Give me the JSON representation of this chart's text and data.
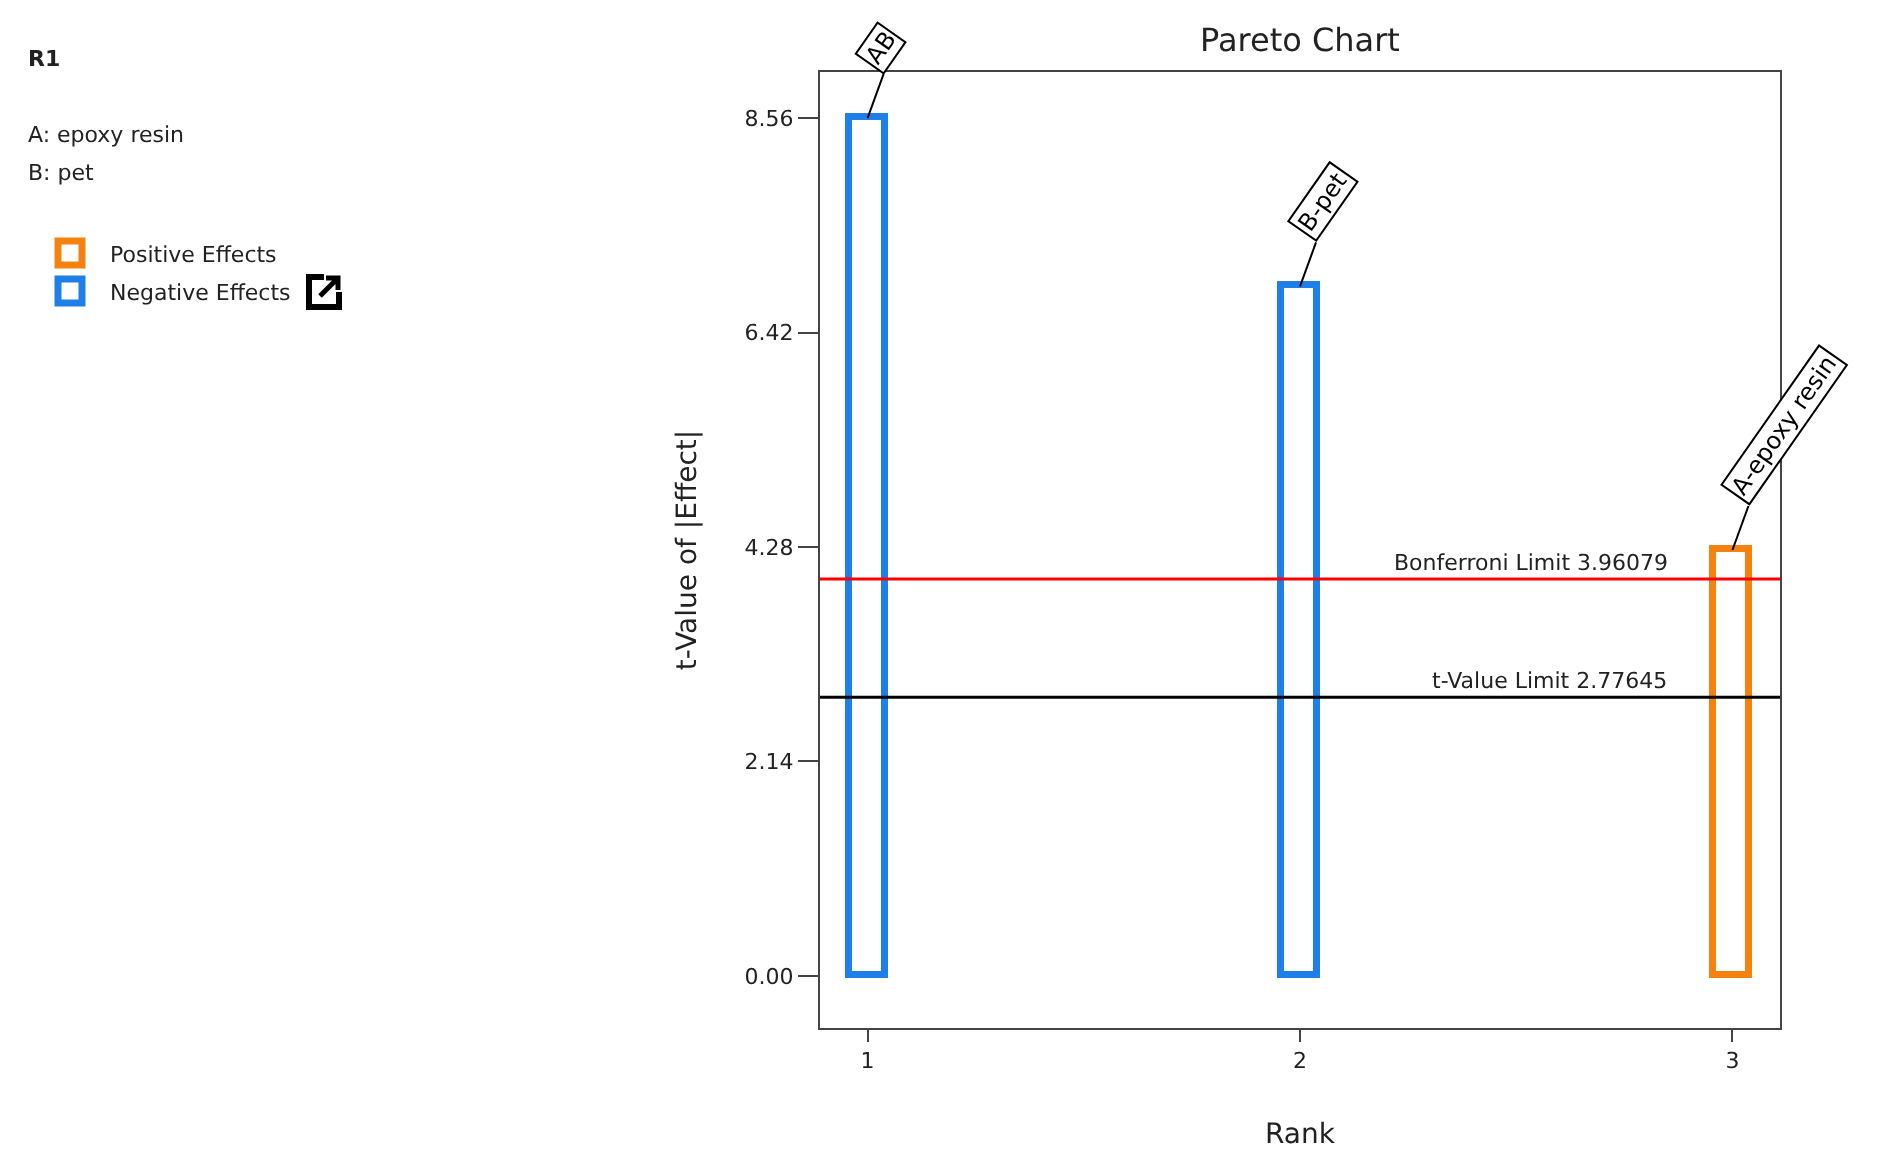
{
  "chart_data": {
    "type": "bar",
    "title": "Pareto Chart",
    "xlabel": "Rank",
    "ylabel": "t-Value of |Effect|",
    "xlim": [
      0.89,
      3.11
    ],
    "xticks": [
      1,
      2,
      3
    ],
    "ylim": [
      -0.52,
      9.02
    ],
    "yticks": [
      {
        "value": 0,
        "label": "0.00"
      },
      {
        "value": 2.14,
        "label": "2.14"
      },
      {
        "value": 4.28,
        "label": "4.28"
      },
      {
        "value": 6.42,
        "label": "6.42"
      },
      {
        "value": 8.56,
        "label": "8.56"
      }
    ],
    "series": [
      {
        "name": "Positive Effects",
        "color": "#f5820f",
        "x": [
          3
        ],
        "values": [
          4.25
        ]
      },
      {
        "name": "Negative Effects",
        "color": "#1f7fe8",
        "x": [
          1,
          2
        ],
        "values": [
          8.56,
          6.88
        ]
      }
    ],
    "ref_lines": [
      {
        "axis": "y",
        "value": 3.96,
        "label": "Bonferroni Limit 3.96079",
        "color": "#ff0000"
      },
      {
        "axis": "y",
        "value": 2.78,
        "label": "t-Value Limit 2.77645",
        "color": "#000000"
      }
    ],
    "annotations": [
      "R1",
      "A: epoxy resin",
      "B: pet",
      {
        "text": "AB",
        "x": 1,
        "y": 8.56
      },
      {
        "text": "B-pet",
        "x": 2,
        "y": 6.88
      },
      {
        "text": "A-epoxy resin",
        "x": 3,
        "y": 4.25
      }
    ],
    "grid": false,
    "legend": "top left"
  }
}
